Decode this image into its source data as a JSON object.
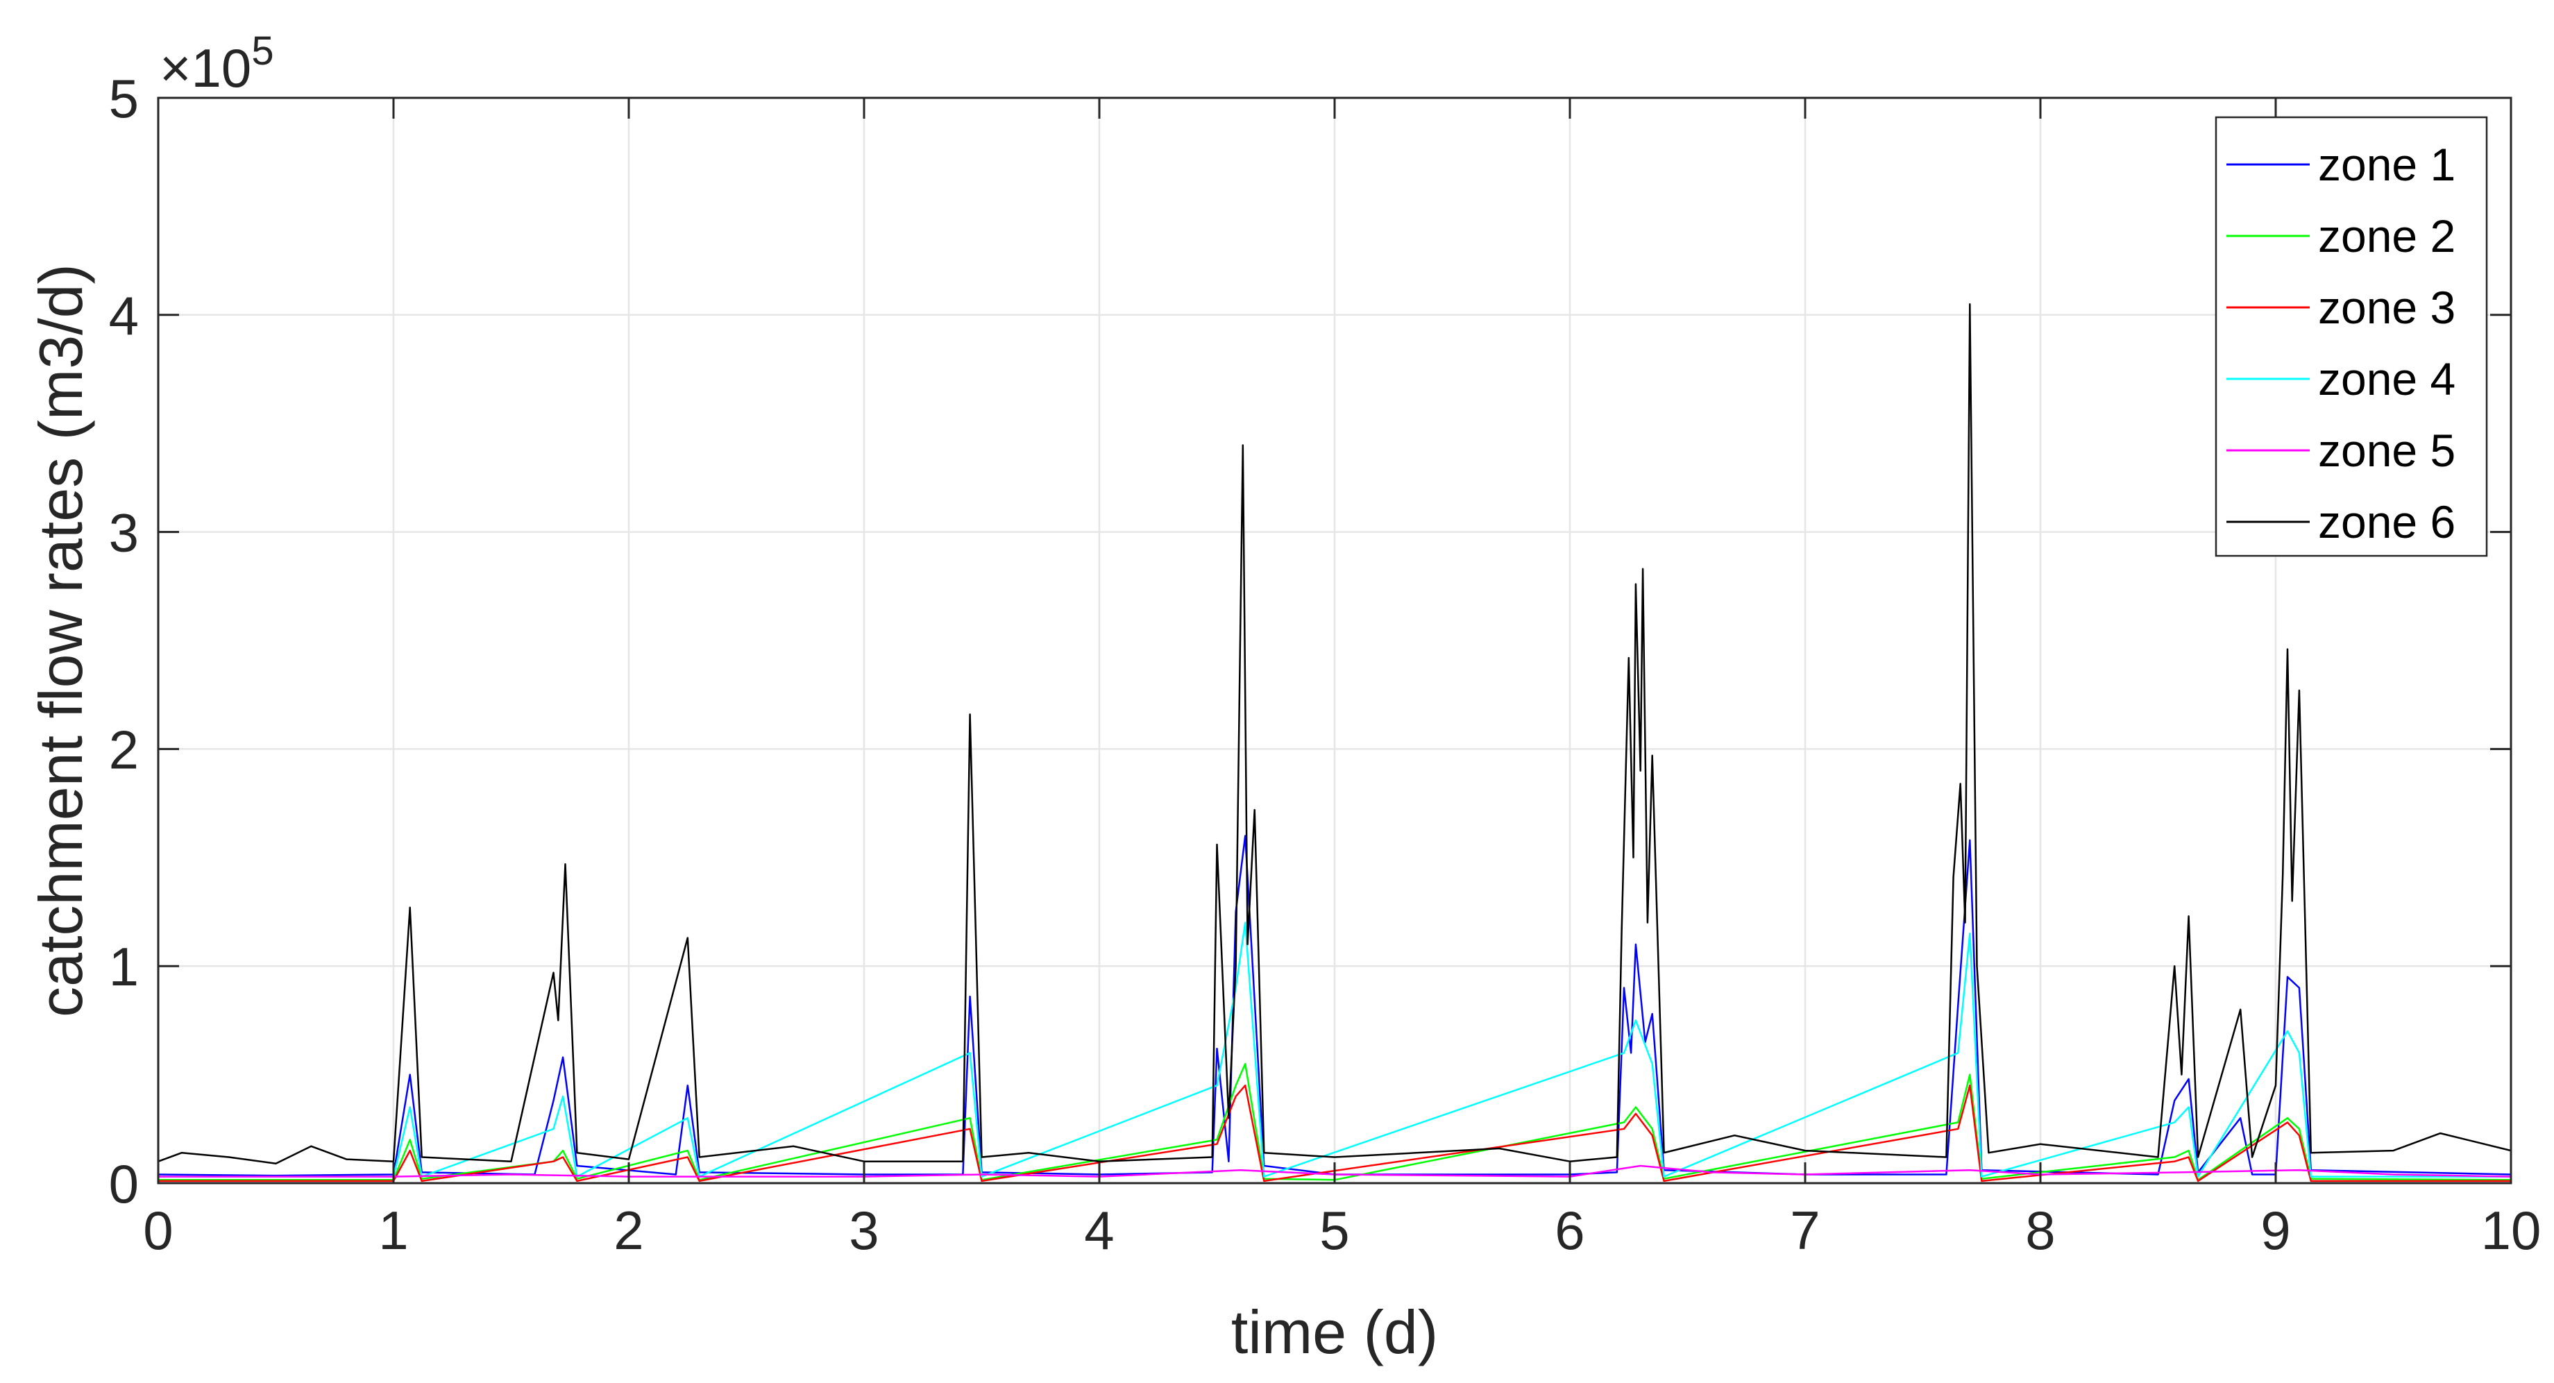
{
  "chart_data": {
    "type": "line",
    "xlabel": "time (d)",
    "ylabel": "catchment flow rates (m3/d)",
    "y_exponent_label": "×10",
    "y_exponent_power": "5",
    "xlim": [
      0,
      10
    ],
    "ylim": [
      0,
      5
    ],
    "y_unit_multiplier": 100000,
    "x_ticks": [
      "0",
      "1",
      "2",
      "3",
      "4",
      "5",
      "6",
      "7",
      "8",
      "9",
      "10"
    ],
    "y_ticks": [
      "0",
      "1",
      "2",
      "3",
      "4",
      "5"
    ],
    "grid": true,
    "legend_position": "top-right",
    "series": [
      {
        "name": "zone 1",
        "color": "#0000ff",
        "points": [
          [
            0,
            0.04
          ],
          [
            0.5,
            0.035
          ],
          [
            1.0,
            0.04
          ],
          [
            1.07,
            0.5
          ],
          [
            1.12,
            0.05
          ],
          [
            1.6,
            0.04
          ],
          [
            1.68,
            0.38
          ],
          [
            1.72,
            0.58
          ],
          [
            1.78,
            0.08
          ],
          [
            2.2,
            0.04
          ],
          [
            2.25,
            0.45
          ],
          [
            2.3,
            0.05
          ],
          [
            3.0,
            0.04
          ],
          [
            3.42,
            0.04
          ],
          [
            3.45,
            0.86
          ],
          [
            3.5,
            0.05
          ],
          [
            4.0,
            0.04
          ],
          [
            4.48,
            0.05
          ],
          [
            4.5,
            0.62
          ],
          [
            4.55,
            0.1
          ],
          [
            4.58,
            1.25
          ],
          [
            4.62,
            1.6
          ],
          [
            4.7,
            0.08
          ],
          [
            5.0,
            0.04
          ],
          [
            6.0,
            0.04
          ],
          [
            6.2,
            0.05
          ],
          [
            6.23,
            0.9
          ],
          [
            6.26,
            0.6
          ],
          [
            6.28,
            1.1
          ],
          [
            6.32,
            0.65
          ],
          [
            6.35,
            0.78
          ],
          [
            6.4,
            0.06
          ],
          [
            7.0,
            0.04
          ],
          [
            7.6,
            0.04
          ],
          [
            7.65,
            0.82
          ],
          [
            7.7,
            1.58
          ],
          [
            7.75,
            0.06
          ],
          [
            8.5,
            0.04
          ],
          [
            8.57,
            0.38
          ],
          [
            8.63,
            0.48
          ],
          [
            8.67,
            0.05
          ],
          [
            8.85,
            0.3
          ],
          [
            8.9,
            0.04
          ],
          [
            9.0,
            0.04
          ],
          [
            9.05,
            0.95
          ],
          [
            9.1,
            0.9
          ],
          [
            9.15,
            0.06
          ],
          [
            10.0,
            0.04
          ]
        ]
      },
      {
        "name": "zone 2",
        "color": "#00ff00",
        "points": [
          [
            0,
            0.015
          ],
          [
            1.0,
            0.015
          ],
          [
            1.07,
            0.2
          ],
          [
            1.12,
            0.02
          ],
          [
            1.68,
            0.1
          ],
          [
            1.72,
            0.15
          ],
          [
            1.78,
            0.02
          ],
          [
            2.25,
            0.15
          ],
          [
            2.3,
            0.015
          ],
          [
            3.45,
            0.3
          ],
          [
            3.5,
            0.015
          ],
          [
            4.5,
            0.2
          ],
          [
            4.58,
            0.45
          ],
          [
            4.62,
            0.55
          ],
          [
            4.7,
            0.02
          ],
          [
            5.0,
            0.015
          ],
          [
            6.23,
            0.28
          ],
          [
            6.28,
            0.35
          ],
          [
            6.35,
            0.25
          ],
          [
            6.4,
            0.02
          ],
          [
            7.65,
            0.28
          ],
          [
            7.7,
            0.5
          ],
          [
            7.75,
            0.02
          ],
          [
            8.57,
            0.12
          ],
          [
            8.63,
            0.15
          ],
          [
            8.67,
            0.015
          ],
          [
            9.05,
            0.3
          ],
          [
            9.1,
            0.25
          ],
          [
            9.15,
            0.02
          ],
          [
            10.0,
            0.015
          ]
        ]
      },
      {
        "name": "zone 3",
        "color": "#ff0000",
        "points": [
          [
            0,
            0.01
          ],
          [
            1.0,
            0.01
          ],
          [
            1.07,
            0.15
          ],
          [
            1.12,
            0.01
          ],
          [
            1.68,
            0.1
          ],
          [
            1.72,
            0.12
          ],
          [
            1.78,
            0.01
          ],
          [
            2.25,
            0.12
          ],
          [
            2.3,
            0.01
          ],
          [
            3.45,
            0.25
          ],
          [
            3.5,
            0.01
          ],
          [
            4.5,
            0.18
          ],
          [
            4.58,
            0.4
          ],
          [
            4.62,
            0.45
          ],
          [
            4.7,
            0.01
          ],
          [
            6.23,
            0.25
          ],
          [
            6.28,
            0.32
          ],
          [
            6.35,
            0.22
          ],
          [
            6.4,
            0.01
          ],
          [
            7.65,
            0.25
          ],
          [
            7.7,
            0.45
          ],
          [
            7.75,
            0.01
          ],
          [
            8.57,
            0.1
          ],
          [
            8.63,
            0.12
          ],
          [
            8.67,
            0.01
          ],
          [
            9.05,
            0.28
          ],
          [
            9.1,
            0.22
          ],
          [
            9.15,
            0.01
          ],
          [
            10.0,
            0.01
          ]
        ]
      },
      {
        "name": "zone 4",
        "color": "#00ffff",
        "points": [
          [
            0,
            0.03
          ],
          [
            1.0,
            0.03
          ],
          [
            1.07,
            0.35
          ],
          [
            1.12,
            0.03
          ],
          [
            1.68,
            0.25
          ],
          [
            1.72,
            0.4
          ],
          [
            1.78,
            0.03
          ],
          [
            2.25,
            0.3
          ],
          [
            2.3,
            0.03
          ],
          [
            3.45,
            0.6
          ],
          [
            3.5,
            0.03
          ],
          [
            4.5,
            0.45
          ],
          [
            4.58,
            0.9
          ],
          [
            4.62,
            1.2
          ],
          [
            4.7,
            0.03
          ],
          [
            6.23,
            0.6
          ],
          [
            6.28,
            0.75
          ],
          [
            6.35,
            0.55
          ],
          [
            6.4,
            0.03
          ],
          [
            7.65,
            0.6
          ],
          [
            7.7,
            1.15
          ],
          [
            7.75,
            0.03
          ],
          [
            8.57,
            0.28
          ],
          [
            8.63,
            0.35
          ],
          [
            8.67,
            0.03
          ],
          [
            9.05,
            0.7
          ],
          [
            9.1,
            0.6
          ],
          [
            9.15,
            0.03
          ],
          [
            10.0,
            0.03
          ]
        ]
      },
      {
        "name": "zone 5",
        "color": "#ff00ff",
        "points": [
          [
            0,
            0.03
          ],
          [
            1.0,
            0.03
          ],
          [
            1.5,
            0.04
          ],
          [
            2.0,
            0.03
          ],
          [
            3.0,
            0.03
          ],
          [
            3.5,
            0.04
          ],
          [
            4.0,
            0.03
          ],
          [
            4.6,
            0.06
          ],
          [
            5.0,
            0.04
          ],
          [
            6.0,
            0.03
          ],
          [
            6.3,
            0.08
          ],
          [
            6.6,
            0.05
          ],
          [
            7.0,
            0.04
          ],
          [
            7.7,
            0.06
          ],
          [
            8.0,
            0.04
          ],
          [
            8.6,
            0.05
          ],
          [
            9.1,
            0.06
          ],
          [
            9.5,
            0.04
          ],
          [
            10.0,
            0.03
          ]
        ]
      },
      {
        "name": "zone 6",
        "color": "#000000",
        "points": [
          [
            0,
            0.1
          ],
          [
            0.1,
            0.14
          ],
          [
            0.3,
            0.12
          ],
          [
            0.5,
            0.09
          ],
          [
            0.65,
            0.17
          ],
          [
            0.8,
            0.11
          ],
          [
            1.0,
            0.1
          ],
          [
            1.07,
            1.27
          ],
          [
            1.12,
            0.12
          ],
          [
            1.5,
            0.1
          ],
          [
            1.68,
            0.97
          ],
          [
            1.7,
            0.75
          ],
          [
            1.73,
            1.47
          ],
          [
            1.78,
            0.14
          ],
          [
            2.0,
            0.11
          ],
          [
            2.25,
            1.13
          ],
          [
            2.3,
            0.12
          ],
          [
            2.7,
            0.17
          ],
          [
            3.0,
            0.1
          ],
          [
            3.42,
            0.1
          ],
          [
            3.45,
            2.16
          ],
          [
            3.5,
            0.12
          ],
          [
            3.7,
            0.14
          ],
          [
            4.0,
            0.1
          ],
          [
            4.48,
            0.12
          ],
          [
            4.5,
            1.56
          ],
          [
            4.55,
            0.3
          ],
          [
            4.58,
            1.0
          ],
          [
            4.61,
            3.4
          ],
          [
            4.63,
            1.1
          ],
          [
            4.66,
            1.72
          ],
          [
            4.7,
            0.14
          ],
          [
            5.0,
            0.12
          ],
          [
            5.7,
            0.16
          ],
          [
            6.0,
            0.1
          ],
          [
            6.2,
            0.12
          ],
          [
            6.22,
            1.16
          ],
          [
            6.25,
            2.42
          ],
          [
            6.27,
            1.5
          ],
          [
            6.28,
            2.76
          ],
          [
            6.3,
            1.9
          ],
          [
            6.31,
            2.83
          ],
          [
            6.33,
            1.2
          ],
          [
            6.35,
            1.97
          ],
          [
            6.4,
            0.14
          ],
          [
            6.7,
            0.22
          ],
          [
            7.0,
            0.15
          ],
          [
            7.6,
            0.12
          ],
          [
            7.63,
            1.41
          ],
          [
            7.66,
            1.84
          ],
          [
            7.68,
            1.2
          ],
          [
            7.7,
            4.05
          ],
          [
            7.73,
            1.0
          ],
          [
            7.78,
            0.14
          ],
          [
            8.0,
            0.18
          ],
          [
            8.5,
            0.12
          ],
          [
            8.57,
            1.0
          ],
          [
            8.6,
            0.5
          ],
          [
            8.63,
            1.23
          ],
          [
            8.67,
            0.12
          ],
          [
            8.85,
            0.8
          ],
          [
            8.9,
            0.12
          ],
          [
            9.0,
            0.45
          ],
          [
            9.03,
            1.42
          ],
          [
            9.05,
            2.46
          ],
          [
            9.07,
            1.3
          ],
          [
            9.1,
            2.27
          ],
          [
            9.15,
            0.14
          ],
          [
            9.5,
            0.15
          ],
          [
            9.7,
            0.23
          ],
          [
            10.0,
            0.15
          ]
        ]
      }
    ]
  }
}
